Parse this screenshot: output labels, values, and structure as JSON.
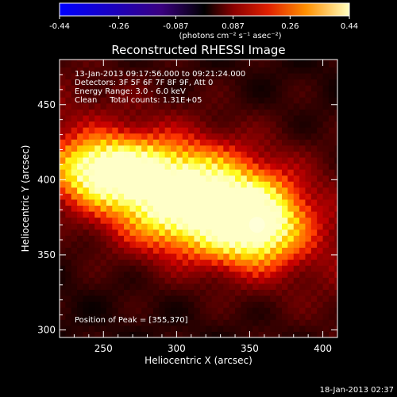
{
  "colorbar": {
    "ticks": [
      "-0.44",
      "-0.26",
      "-0.087",
      "0.087",
      "0.26",
      "0.44"
    ],
    "range": [
      -0.44,
      0.44
    ],
    "unit_label": "(photons cm⁻² s⁻¹ asec⁻²)"
  },
  "title": "Reconstructed RHESSI Image",
  "info": {
    "time": "13-Jan-2013 09:17:56.000 to 09:21:24.000",
    "detectors": "Detectors: 3F 5F 6F 7F 8F 9F, Att 0",
    "energy": "Energy Range: 3.0 - 6.0 keV",
    "clean": "Clean     Total counts: 1.31E+05"
  },
  "peak_text": "Position of Peak = [355,370]",
  "footer_date": "18-Jan-2013 02:37",
  "chart_data": {
    "type": "heatmap",
    "title": "Reconstructed RHESSI Image",
    "xlabel": "Heliocentric X (arcsec)",
    "ylabel": "Heliocentric Y (arcsec)",
    "xlim": [
      220,
      410
    ],
    "ylim": [
      295,
      480
    ],
    "xticks": [
      250,
      300,
      350,
      400
    ],
    "yticks": [
      300,
      350,
      400,
      450
    ],
    "colormap": "red-temperature",
    "peak": [
      355,
      370
    ],
    "sources": [
      {
        "x": 355,
        "y": 370,
        "intensity": 0.44,
        "sx": 14,
        "sy": 12
      },
      {
        "x": 320,
        "y": 380,
        "intensity": 0.34,
        "sx": 22,
        "sy": 14
      },
      {
        "x": 300,
        "y": 392,
        "intensity": 0.33,
        "sx": 22,
        "sy": 14
      },
      {
        "x": 262,
        "y": 405,
        "intensity": 0.3,
        "sx": 18,
        "sy": 10
      },
      {
        "x": 245,
        "y": 408,
        "intensity": 0.26,
        "sx": 14,
        "sy": 9
      }
    ]
  }
}
